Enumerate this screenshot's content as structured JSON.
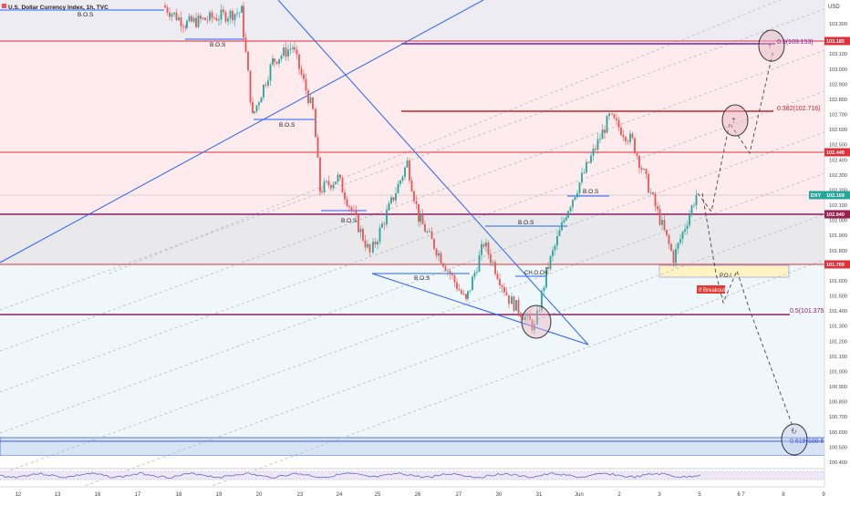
{
  "header": {
    "title": "U.S. Dollar Currency Index, 1h, TVC"
  },
  "price_axis": {
    "currency": "USD",
    "ticks": [
      "103.300",
      "103.200",
      "103.100",
      "103.000",
      "102.900",
      "102.800",
      "102.700",
      "102.600",
      "102.500",
      "102.400",
      "102.300",
      "102.200",
      "102.100",
      "102.000",
      "101.900",
      "101.800",
      "101.700",
      "101.600",
      "101.500",
      "101.400",
      "101.300",
      "101.200",
      "101.100",
      "101.000",
      "100.900",
      "100.800",
      "100.700",
      "100.600",
      "100.500",
      "100.400"
    ],
    "badges": [
      {
        "label": "103.185",
        "value": 103.185,
        "color": "#e0303a"
      },
      {
        "label": "102.448",
        "value": 102.448,
        "color": "#e0303a"
      },
      {
        "label": "DXY",
        "value": 102.169,
        "color": "#26a69a"
      },
      {
        "label": "102.169",
        "value": 102.169,
        "color": "#26a69a"
      },
      {
        "label": "102.040",
        "value": 102.04,
        "color": "#9c1f52"
      },
      {
        "label": "101.709",
        "value": 101.709,
        "color": "#e0303a"
      }
    ]
  },
  "time_axis": {
    "labels": [
      "12",
      "13",
      "16",
      "17",
      "18",
      "19",
      "20",
      "23",
      "24",
      "25",
      "26",
      "27",
      "30",
      "31",
      "Jun",
      "2",
      "3",
      "5",
      "6",
      "7",
      "8",
      "9"
    ]
  },
  "annotations": {
    "bos_labels": [
      "B.O.S",
      "B.O.S",
      "B.O.S",
      "B.O.S",
      "B.O.S",
      "B.O.S",
      "B.O.S"
    ],
    "choch": "CH.O.CH",
    "poi": "P.O.I",
    "breakout": "If Breakout",
    "fib_labels": [
      "0.5(103.153)",
      "0.382(102.716)",
      "0.5(101.375)",
      "0.618(100.51)"
    ]
  },
  "colors": {
    "bull": "#26a69a",
    "bear": "#ef5350",
    "resistance": "#e0303a",
    "purple_line": "#8c1c6a",
    "trendline": "#2962ff",
    "zone_pink": "#fde8ea",
    "zone_gray": "#e9e9ee",
    "zone_blue": "#e3f2fd"
  },
  "chart_data": {
    "type": "candlestick",
    "title": "U.S. Dollar Currency Index, 1h, TVC",
    "ylim": [
      100.35,
      103.35
    ],
    "x_labels": [
      "12",
      "13",
      "16",
      "17",
      "18",
      "19",
      "20",
      "23",
      "24",
      "25",
      "26",
      "27",
      "30",
      "31",
      "Jun",
      "2",
      "3",
      "5",
      "6",
      "7",
      "8",
      "9"
    ],
    "price_waypoints": [
      {
        "t": "17",
        "price": 103.42
      },
      {
        "t": "18",
        "price": 103.3
      },
      {
        "t": "19",
        "price": 103.38
      },
      {
        "t": "20",
        "price": 102.68
      },
      {
        "t": "20",
        "price": 103.05
      },
      {
        "t": "23",
        "price": 103.15
      },
      {
        "t": "23",
        "price": 102.72
      },
      {
        "t": "24",
        "price": 102.2
      },
      {
        "t": "24",
        "price": 102.28
      },
      {
        "t": "25",
        "price": 101.78
      },
      {
        "t": "26",
        "price": 102.38
      },
      {
        "t": "26",
        "price": 102.02
      },
      {
        "t": "27",
        "price": 101.46
      },
      {
        "t": "27",
        "price": 101.85
      },
      {
        "t": "30",
        "price": 101.48
      },
      {
        "t": "31",
        "price": 101.29
      },
      {
        "t": "31",
        "price": 101.65
      },
      {
        "t": "Jun",
        "price": 102.05
      },
      {
        "t": "2",
        "price": 102.68
      },
      {
        "t": "2",
        "price": 102.52
      },
      {
        "t": "3",
        "price": 101.75
      },
      {
        "t": "5",
        "price": 102.17
      }
    ],
    "levels": [
      {
        "label": "103.185",
        "value": 103.185
      },
      {
        "label": "102.448",
        "value": 102.448
      },
      {
        "label": "102.040",
        "value": 102.04
      },
      {
        "label": "101.709",
        "value": 101.709
      },
      {
        "label": "0.382(102.716)",
        "value": 102.716
      },
      {
        "label": "0.5(101.375)",
        "value": 101.375
      },
      {
        "label": "0.5(103.153)",
        "value": 103.153
      },
      {
        "label": "0.618(100.51)",
        "value": 100.51
      }
    ],
    "last_price": 102.169,
    "symbol": "DXY"
  }
}
